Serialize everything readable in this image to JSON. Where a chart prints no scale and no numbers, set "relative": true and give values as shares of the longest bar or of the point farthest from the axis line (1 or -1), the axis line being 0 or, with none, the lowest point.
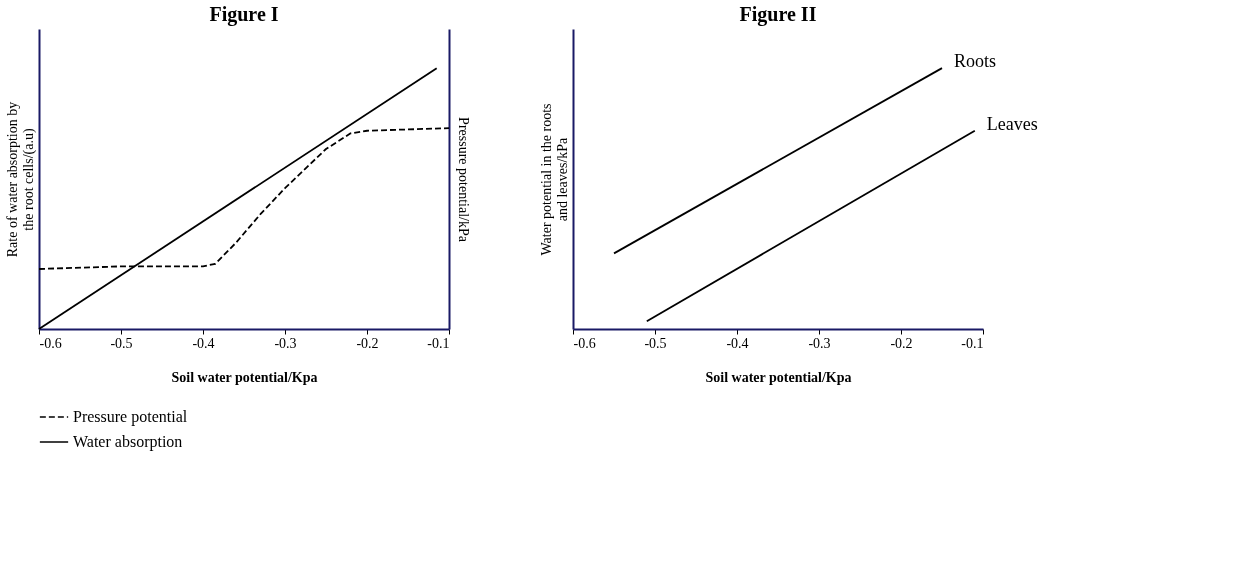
{
  "chart_data": [
    {
      "type": "line",
      "title": "Figure I",
      "xlabel": "Soil water potential/Kpa",
      "ylabel": "Rate of water absorption by the root cells/(a.u)",
      "y2label": "Pressure potential/kPa",
      "xlim": [
        -0.6,
        -0.1
      ],
      "xticks": [
        -0.6,
        -0.5,
        -0.4,
        -0.3,
        -0.2,
        -0.1
      ],
      "relative": true,
      "grid": false,
      "legend": "bottom",
      "marker": "none",
      "series": [
        {
          "name": "Pressure potential",
          "color": "#000000",
          "line_style": "dashed",
          "x": [
            -0.6,
            -0.5,
            -0.4,
            -0.385,
            -0.36,
            -0.33,
            -0.3,
            -0.27,
            -0.25,
            -0.22,
            -0.2,
            -0.1
          ],
          "values": [
            0.23,
            0.24,
            0.24,
            0.25,
            0.33,
            0.44,
            0.54,
            0.63,
            0.69,
            0.75,
            0.76,
            0.77
          ]
        },
        {
          "name": "Water absorption",
          "color": "#000000",
          "line_style": "solid",
          "x": [
            -0.6,
            -0.115
          ],
          "values": [
            0,
            1
          ]
        }
      ]
    },
    {
      "type": "line",
      "title": "Figure II",
      "xlabel": "Soil water potential/Kpa",
      "ylabel": "Water potential in the roots and leaves/kPa",
      "xlim": [
        -0.6,
        -0.1
      ],
      "xticks": [
        -0.6,
        -0.5,
        -0.4,
        -0.3,
        -0.2,
        -0.1
      ],
      "relative": true,
      "grid": false,
      "legend": false,
      "marker": "none",
      "series": [
        {
          "name": "Roots",
          "color": "#000000",
          "line_style": "solid",
          "x": [
            -0.55,
            -0.15
          ],
          "values": [
            0.29,
            1
          ]
        },
        {
          "name": "Leaves",
          "color": "#000000",
          "line_style": "solid",
          "x": [
            -0.51,
            -0.11
          ],
          "values": [
            0.03,
            0.76
          ]
        }
      ]
    }
  ]
}
